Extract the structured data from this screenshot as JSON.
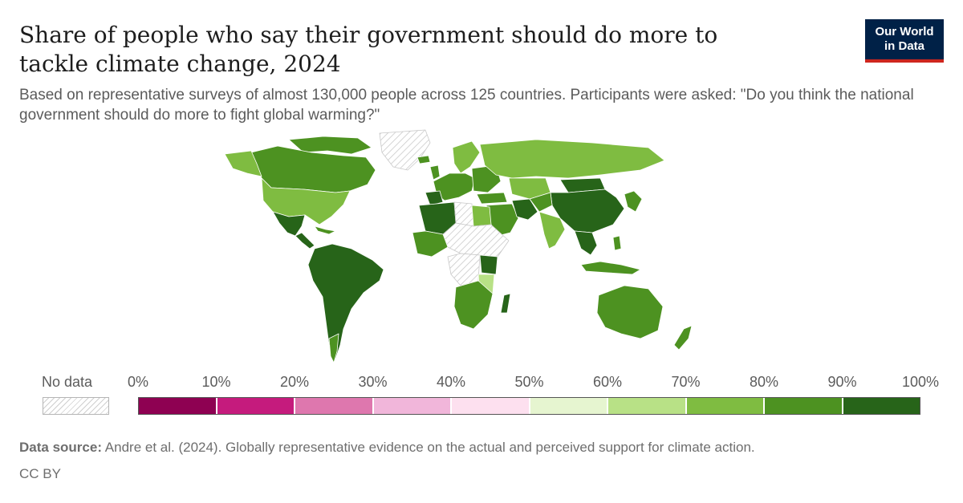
{
  "title": "Share of people who say their government should do more to tackle climate change, 2024",
  "subtitle": "Based on representative surveys of almost 130,000 people across 125 countries. Participants were asked: \"Do you think the national government should do more to fight global warming?\"",
  "logo": {
    "line1": "Our World",
    "line2": "in Data"
  },
  "legend": {
    "no_data_label": "No data",
    "ticks": [
      "0%",
      "10%",
      "20%",
      "30%",
      "40%",
      "50%",
      "60%",
      "70%",
      "80%",
      "90%",
      "100%"
    ],
    "colors": [
      "#8e0152",
      "#c51b7d",
      "#de77ae",
      "#f1b6da",
      "#fde0ef",
      "#e6f5d0",
      "#b8e186",
      "#7fbc41",
      "#4d9221",
      "#276419"
    ]
  },
  "source": {
    "label": "Data source:",
    "text": "Andre et al. (2024). Globally representative evidence on the actual and perceived support for climate action."
  },
  "license": "CC BY",
  "chart_data": {
    "type": "choropleth",
    "value_unit": "%",
    "scale_bins": [
      0,
      10,
      20,
      30,
      40,
      50,
      60,
      70,
      80,
      90,
      100
    ],
    "regions": [
      {
        "region": "Canada",
        "bin": "80-90"
      },
      {
        "region": "Greenland",
        "bin": "no data"
      },
      {
        "region": "United States",
        "bin": "70-80"
      },
      {
        "region": "Mexico",
        "bin": "90-100"
      },
      {
        "region": "Central America",
        "bin": "90-100"
      },
      {
        "region": "South America",
        "bin": "90-100"
      },
      {
        "region": "Western Europe",
        "bin": "80-90"
      },
      {
        "region": "Scandinavia",
        "bin": "70-80"
      },
      {
        "region": "Russia",
        "bin": "70-80"
      },
      {
        "region": "Kazakhstan",
        "bin": "70-80"
      },
      {
        "region": "Middle East",
        "bin": "80-90"
      },
      {
        "region": "Iran",
        "bin": "90-100"
      },
      {
        "region": "India",
        "bin": "70-80"
      },
      {
        "region": "China",
        "bin": "90-100"
      },
      {
        "region": "Mongolia",
        "bin": "90-100"
      },
      {
        "region": "Japan",
        "bin": "80-90"
      },
      {
        "region": "Southeast Asia",
        "bin": "90-100"
      },
      {
        "region": "Indonesia",
        "bin": "80-90"
      },
      {
        "region": "Australia",
        "bin": "80-90"
      },
      {
        "region": "New Zealand",
        "bin": "80-90"
      },
      {
        "region": "Algeria",
        "bin": "90-100"
      },
      {
        "region": "Libya",
        "bin": "no data"
      },
      {
        "region": "Egypt",
        "bin": "70-80"
      },
      {
        "region": "Sahel and Horn of Africa",
        "bin": "no data"
      },
      {
        "region": "West Africa",
        "bin": "80-90"
      },
      {
        "region": "Central Africa",
        "bin": "no data"
      },
      {
        "region": "Kenya",
        "bin": "90-100"
      },
      {
        "region": "Tanzania",
        "bin": "60-70"
      },
      {
        "region": "Southern Africa",
        "bin": "80-90"
      },
      {
        "region": "Madagascar",
        "bin": "90-100"
      }
    ]
  }
}
